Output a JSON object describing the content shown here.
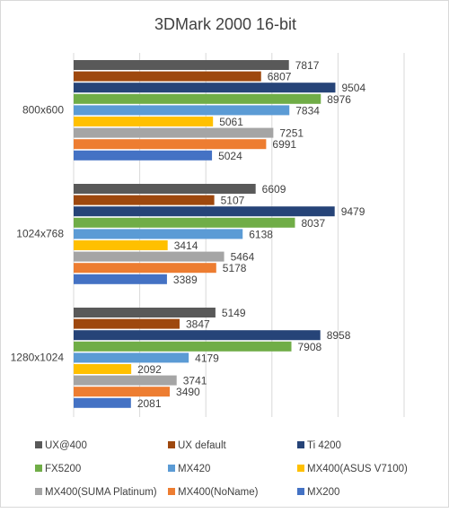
{
  "chart_data": {
    "type": "bar",
    "orientation": "horizontal",
    "title": "3DMark 2000 16-bit",
    "xlabel": "",
    "ylabel": "",
    "categories": [
      "800x600",
      "1024x768",
      "1280x1024"
    ],
    "xlim": [
      0,
      12000
    ],
    "grid": true,
    "legend_position": "bottom",
    "data_labels": true,
    "series": [
      {
        "name": "UX@400",
        "color": "#595959",
        "values": [
          7817,
          6609,
          5149
        ]
      },
      {
        "name": "UX default",
        "color": "#9e480e",
        "values": [
          6807,
          5107,
          3847
        ]
      },
      {
        "name": "Ti 4200",
        "color": "#264478",
        "values": [
          9504,
          9479,
          8958
        ]
      },
      {
        "name": "FX5200",
        "color": "#70ad47",
        "values": [
          8976,
          8037,
          7908
        ]
      },
      {
        "name": "MX420",
        "color": "#5b9bd5",
        "values": [
          7834,
          6138,
          4179
        ]
      },
      {
        "name": "MX400(ASUS V7100)",
        "color": "#ffc000",
        "values": [
          5061,
          3414,
          2092
        ]
      },
      {
        "name": "MX400(SUMA Platinum)",
        "color": "#a5a5a5",
        "values": [
          7251,
          5464,
          3741
        ]
      },
      {
        "name": "MX400(NoName)",
        "color": "#ed7d31",
        "values": [
          6991,
          5178,
          3490
        ]
      },
      {
        "name": "MX200",
        "color": "#4472c4",
        "values": [
          5024,
          3389,
          2081
        ]
      }
    ]
  }
}
